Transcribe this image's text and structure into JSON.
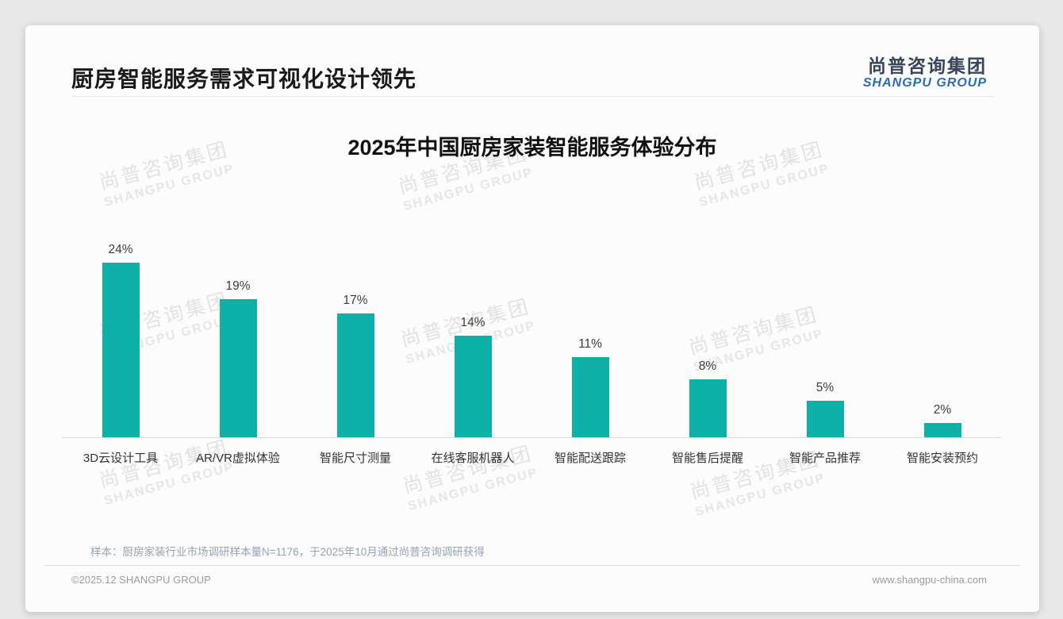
{
  "header": {
    "title": "厨房智能服务需求可视化设计领先",
    "logo_cn": "尚普咨询集团",
    "logo_en": "SHANGPU GROUP"
  },
  "chart_data": {
    "type": "bar",
    "title": "2025年中国厨房家装智能服务体验分布",
    "categories": [
      "3D云设计工具",
      "AR/VR虚拟体验",
      "智能尺寸测量",
      "在线客服机器人",
      "智能配送跟踪",
      "智能售后提醒",
      "智能产品推荐",
      "智能安装预约"
    ],
    "values": [
      24,
      19,
      17,
      14,
      11,
      8,
      5,
      2
    ],
    "unit": "%",
    "value_label_suffix": "%",
    "xlabel": "",
    "ylabel": "",
    "ylim": [
      0,
      25
    ],
    "grid": false,
    "legend": false,
    "bar_color": "#0db1a7",
    "axis_line_color": "#d8d8d8"
  },
  "watermark": {
    "line1": "尚普咨询集团",
    "line2": "SHANGPU GROUP"
  },
  "footer": {
    "note": "样本：厨房家装行业市场调研样本量N=1176，于2025年10月通过尚普咨询调研获得",
    "copyright": "©2025.12 SHANGPU GROUP",
    "website": "www.shangpu-china.com"
  },
  "colors": {
    "accent_teal": "#0db1a7",
    "logo_blue": "#2a6cb4",
    "logo_dark": "#36455a",
    "title_black": "#1a1a1a",
    "note_grayblue": "#93a4b6"
  }
}
